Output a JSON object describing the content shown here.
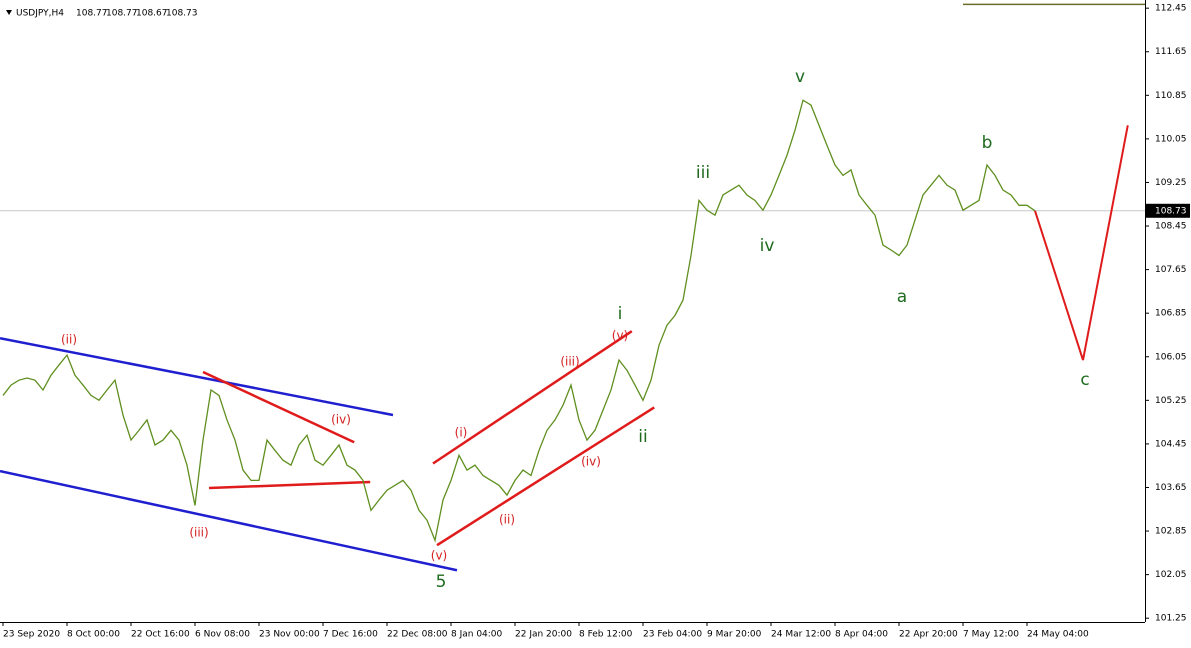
{
  "chart_data": {
    "type": "line",
    "symbol": "USDJPY,H4",
    "ohlc": [
      108.77,
      108.77,
      108.67,
      108.73
    ],
    "categories": [
      "23 Sep 2020",
      null,
      null,
      null,
      null,
      null,
      null,
      null,
      "8 Oct 00:00",
      null,
      null,
      null,
      null,
      null,
      null,
      null,
      "22 Oct 16:00",
      null,
      null,
      null,
      null,
      null,
      null,
      null,
      "6 Nov 08:00",
      null,
      null,
      null,
      null,
      null,
      null,
      null,
      "23 Nov 00:00",
      null,
      null,
      null,
      null,
      null,
      null,
      null,
      "7 Dec 16:00",
      null,
      null,
      null,
      null,
      null,
      null,
      null,
      "22 Dec 08:00",
      null,
      null,
      null,
      null,
      null,
      null,
      null,
      "8 Jan 04:00",
      null,
      null,
      null,
      null,
      null,
      null,
      null,
      "22 Jan 20:00",
      null,
      null,
      null,
      null,
      null,
      null,
      null,
      "8 Feb 12:00",
      null,
      null,
      null,
      null,
      null,
      null,
      null,
      "23 Feb 04:00",
      null,
      null,
      null,
      null,
      null,
      null,
      null,
      "9 Mar 20:00",
      null,
      null,
      null,
      null,
      null,
      null,
      null,
      "24 Mar 12:00",
      null,
      null,
      null,
      null,
      null,
      null,
      null,
      "8 Apr 04:00",
      null,
      null,
      null,
      null,
      null,
      null,
      null,
      "22 Apr 20:00",
      null,
      null,
      null,
      null,
      null,
      null,
      null,
      "7 May 12:00",
      null,
      null,
      null,
      null,
      null,
      null,
      null,
      "24 May 04:00",
      null
    ],
    "series": [
      {
        "color": "#5f8f1f",
        "values": [
          105.34,
          105.53,
          105.62,
          105.66,
          105.62,
          105.44,
          105.71,
          105.9,
          106.08,
          105.71,
          105.53,
          105.34,
          105.25,
          105.44,
          105.62,
          104.98,
          104.52,
          104.7,
          104.89,
          104.43,
          104.52,
          104.7,
          104.52,
          104.06,
          103.32,
          104.52,
          105.44,
          105.34,
          104.89,
          104.52,
          103.97,
          103.78,
          103.78,
          104.52,
          104.33,
          104.15,
          104.06,
          104.43,
          104.61,
          104.15,
          104.06,
          104.24,
          104.43,
          104.06,
          103.97,
          103.78,
          103.23,
          103.42,
          103.6,
          103.69,
          103.78,
          103.6,
          103.23,
          103.05,
          102.68,
          103.42,
          103.78,
          104.24,
          103.97,
          104.06,
          103.87,
          103.78,
          103.69,
          103.51,
          103.78,
          103.97,
          103.87,
          104.33,
          104.7,
          104.89,
          105.16,
          105.53,
          104.89,
          104.52,
          104.7,
          105.07,
          105.44,
          105.99,
          105.8,
          105.53,
          105.25,
          105.62,
          106.26,
          106.63,
          106.81,
          107.09,
          107.91,
          108.92,
          108.74,
          108.65,
          109.02,
          109.11,
          109.2,
          109.02,
          108.92,
          108.74,
          109.02,
          109.38,
          109.75,
          110.21,
          110.76,
          110.67,
          110.3,
          109.93,
          109.57,
          109.38,
          109.48,
          109.02,
          108.83,
          108.65,
          108.1,
          108.01,
          107.91,
          108.1,
          108.56,
          109.02,
          109.2,
          109.38,
          109.2,
          109.11,
          108.74,
          108.83,
          108.92,
          109.57,
          109.38,
          109.11,
          109.02,
          108.83,
          108.83,
          108.73
        ]
      }
    ],
    "forecast": {
      "color": "#e01b1b",
      "x": [
        129,
        135,
        140.6
      ],
      "values": [
        108.73,
        105.99,
        110.3
      ]
    },
    "trendlines": [
      {
        "color": "#1f1fd0",
        "x": [
          -0.375,
          48.75
        ],
        "values": [
          106.39,
          104.98
        ]
      },
      {
        "color": "#1f1fd0",
        "x": [
          -0.375,
          56.75
        ],
        "values": [
          103.95,
          102.13
        ]
      },
      {
        "color": "#e01b1b",
        "x": [
          25,
          43.9
        ],
        "values": [
          105.77,
          104.48
        ]
      },
      {
        "color": "#e01b1b",
        "x": [
          25.75,
          45.9
        ],
        "values": [
          103.64,
          103.75
        ]
      },
      {
        "color": "#e01b1b",
        "x": [
          53.75,
          78.6
        ],
        "values": [
          104.09,
          106.52
        ]
      },
      {
        "color": "#e01b1b",
        "x": [
          54.25,
          81.4
        ],
        "values": [
          102.59,
          105.12
        ]
      },
      {
        "color": "#6b6b2a",
        "x": [
          120,
          142.75
        ],
        "values": [
          112.52,
          112.52
        ]
      }
    ],
    "wave_labels": [
      {
        "text": "(ii)",
        "style": "red"
      },
      {
        "text": "(iii)",
        "style": "red"
      },
      {
        "text": "(iv)",
        "style": "red"
      },
      {
        "text": "5",
        "style": "green"
      },
      {
        "text": "(v)",
        "style": "red"
      },
      {
        "text": "(i)",
        "style": "red"
      },
      {
        "text": "(ii)",
        "style": "red"
      },
      {
        "text": "(iii)",
        "style": "red"
      },
      {
        "text": "(iv)",
        "style": "red"
      },
      {
        "text": "(v)",
        "style": "red"
      },
      {
        "text": "i",
        "style": "green"
      },
      {
        "text": "ii",
        "style": "green"
      },
      {
        "text": "iii",
        "style": "green"
      },
      {
        "text": "iv",
        "style": "green"
      },
      {
        "text": "v",
        "style": "green"
      },
      {
        "text": "a",
        "style": "green"
      },
      {
        "text": "b",
        "style": "green"
      },
      {
        "text": "c",
        "style": "green"
      }
    ],
    "ylim": [
      101.18,
      112.6
    ],
    "yticks": [
      112.45,
      111.65,
      110.85,
      110.05,
      109.25,
      108.45,
      107.65,
      106.85,
      106.05,
      105.25,
      104.45,
      103.65,
      102.85,
      102.05,
      101.25
    ]
  }
}
